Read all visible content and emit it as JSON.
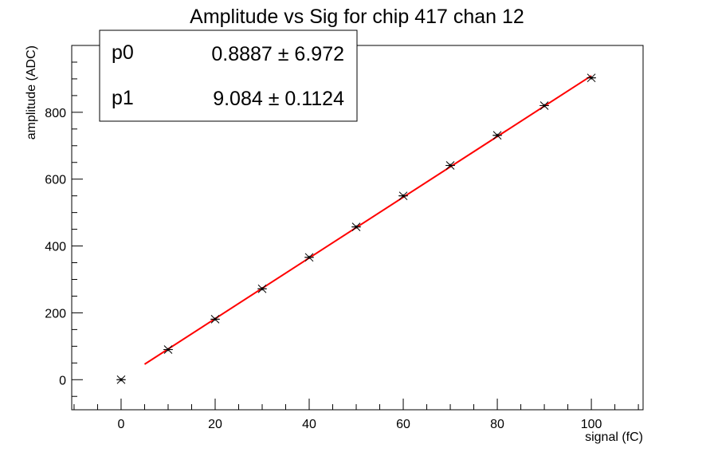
{
  "chart_data": {
    "type": "scatter",
    "title": "Amplitude vs Sig for chip 417 chan 12",
    "xlabel": "signal (fC)",
    "ylabel": "amplitude (ADC)",
    "xlim": [
      -10.5,
      111
    ],
    "ylim": [
      -90,
      1000
    ],
    "x_ticks": [
      0,
      20,
      40,
      60,
      80,
      100
    ],
    "x_tick_labels": [
      "0",
      "20",
      "40",
      "60",
      "80",
      "100"
    ],
    "y_ticks": [
      0,
      200,
      400,
      600,
      800
    ],
    "y_tick_labels": [
      "0",
      "200",
      "400",
      "600",
      "800"
    ],
    "grid": false,
    "legend": "none",
    "series": [
      {
        "x": [
          0,
          10,
          20,
          30,
          40,
          50,
          60,
          70,
          80,
          90,
          100
        ],
        "y": [
          0,
          90,
          181,
          272,
          366,
          457,
          550,
          641,
          731,
          820,
          903
        ],
        "x_err": 1,
        "y_err": 5,
        "color": "#000000",
        "marker": "star"
      }
    ],
    "fit": {
      "function": "pol1",
      "x_range": [
        5,
        100
      ],
      "color": "#ff0000",
      "params": [
        {
          "name": "p0",
          "value": "0.8887",
          "error": "6.972"
        },
        {
          "name": "p1",
          "value": "9.084",
          "error": "0.1124"
        }
      ],
      "p0": 0.8887,
      "p1": 9.084
    }
  },
  "stats_box": {
    "p0_label": "p0",
    "p0_value": "0.8887 ± 6.972",
    "p1_label": "p1",
    "p1_value": "9.084 ± 0.1124"
  }
}
